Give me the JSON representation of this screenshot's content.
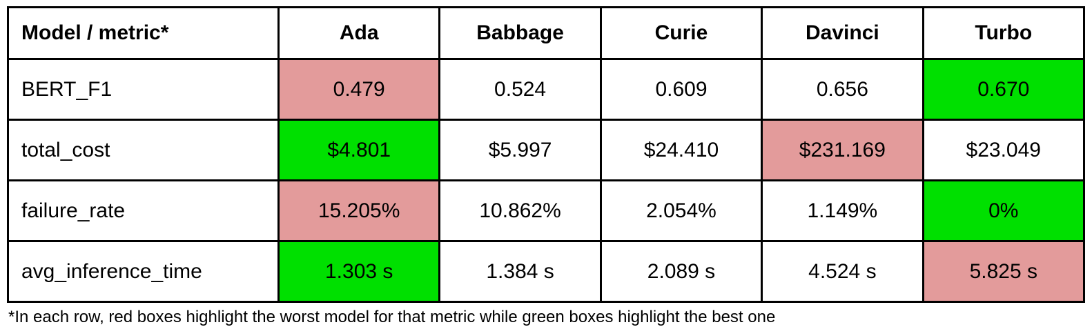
{
  "colors": {
    "best_highlight": "#00e000",
    "worst_highlight": "#e39b9b",
    "border": "#000000",
    "background": "#ffffff"
  },
  "table": {
    "header": [
      "Model / metric*",
      "Ada",
      "Babbage",
      "Curie",
      "Davinci",
      "Turbo"
    ],
    "rows": [
      {
        "metric": "BERT_F1",
        "cells": [
          {
            "value": "0.479",
            "state": "worst"
          },
          {
            "value": "0.524",
            "state": "normal"
          },
          {
            "value": "0.609",
            "state": "normal"
          },
          {
            "value": "0.656",
            "state": "normal"
          },
          {
            "value": "0.670",
            "state": "best"
          }
        ]
      },
      {
        "metric": "total_cost",
        "cells": [
          {
            "value": "$4.801",
            "state": "best"
          },
          {
            "value": "$5.997",
            "state": "normal"
          },
          {
            "value": "$24.410",
            "state": "normal"
          },
          {
            "value": "$231.169",
            "state": "worst"
          },
          {
            "value": "$23.049",
            "state": "normal"
          }
        ]
      },
      {
        "metric": "failure_rate",
        "cells": [
          {
            "value": "15.205%",
            "state": "worst"
          },
          {
            "value": "10.862%",
            "state": "normal"
          },
          {
            "value": "2.054%",
            "state": "normal"
          },
          {
            "value": "1.149%",
            "state": "normal"
          },
          {
            "value": "0%",
            "state": "best"
          }
        ]
      },
      {
        "metric": "avg_inference_time",
        "cells": [
          {
            "value": "1.303 s",
            "state": "best"
          },
          {
            "value": "1.384 s",
            "state": "normal"
          },
          {
            "value": "2.089 s",
            "state": "normal"
          },
          {
            "value": "4.524 s",
            "state": "normal"
          },
          {
            "value": "5.825 s",
            "state": "worst"
          }
        ]
      }
    ]
  },
  "footnote": "*In each row, red boxes highlight the worst model for that metric while green boxes highlight the best one",
  "chart_data": {
    "type": "table",
    "title": "Model / metric comparison",
    "columns": [
      "Model / metric*",
      "Ada",
      "Babbage",
      "Curie",
      "Davinci",
      "Turbo"
    ],
    "rows": [
      [
        "BERT_F1",
        "0.479",
        "0.524",
        "0.609",
        "0.656",
        "0.670"
      ],
      [
        "total_cost",
        "$4.801",
        "$5.997",
        "$24.410",
        "$231.169",
        "$23.049"
      ],
      [
        "failure_rate",
        "15.205%",
        "10.862%",
        "2.054%",
        "1.149%",
        "0%"
      ],
      [
        "avg_inference_time",
        "1.303 s",
        "1.384 s",
        "2.089 s",
        "4.524 s",
        "5.825 s"
      ]
    ],
    "best_per_row": {
      "BERT_F1": "Turbo",
      "total_cost": "Ada",
      "failure_rate": "Turbo",
      "avg_inference_time": "Ada"
    },
    "worst_per_row": {
      "BERT_F1": "Ada",
      "total_cost": "Davinci",
      "failure_rate": "Ada",
      "avg_inference_time": "Turbo"
    },
    "note": "*In each row, red boxes highlight the worst model for that metric while green boxes highlight the best one"
  }
}
